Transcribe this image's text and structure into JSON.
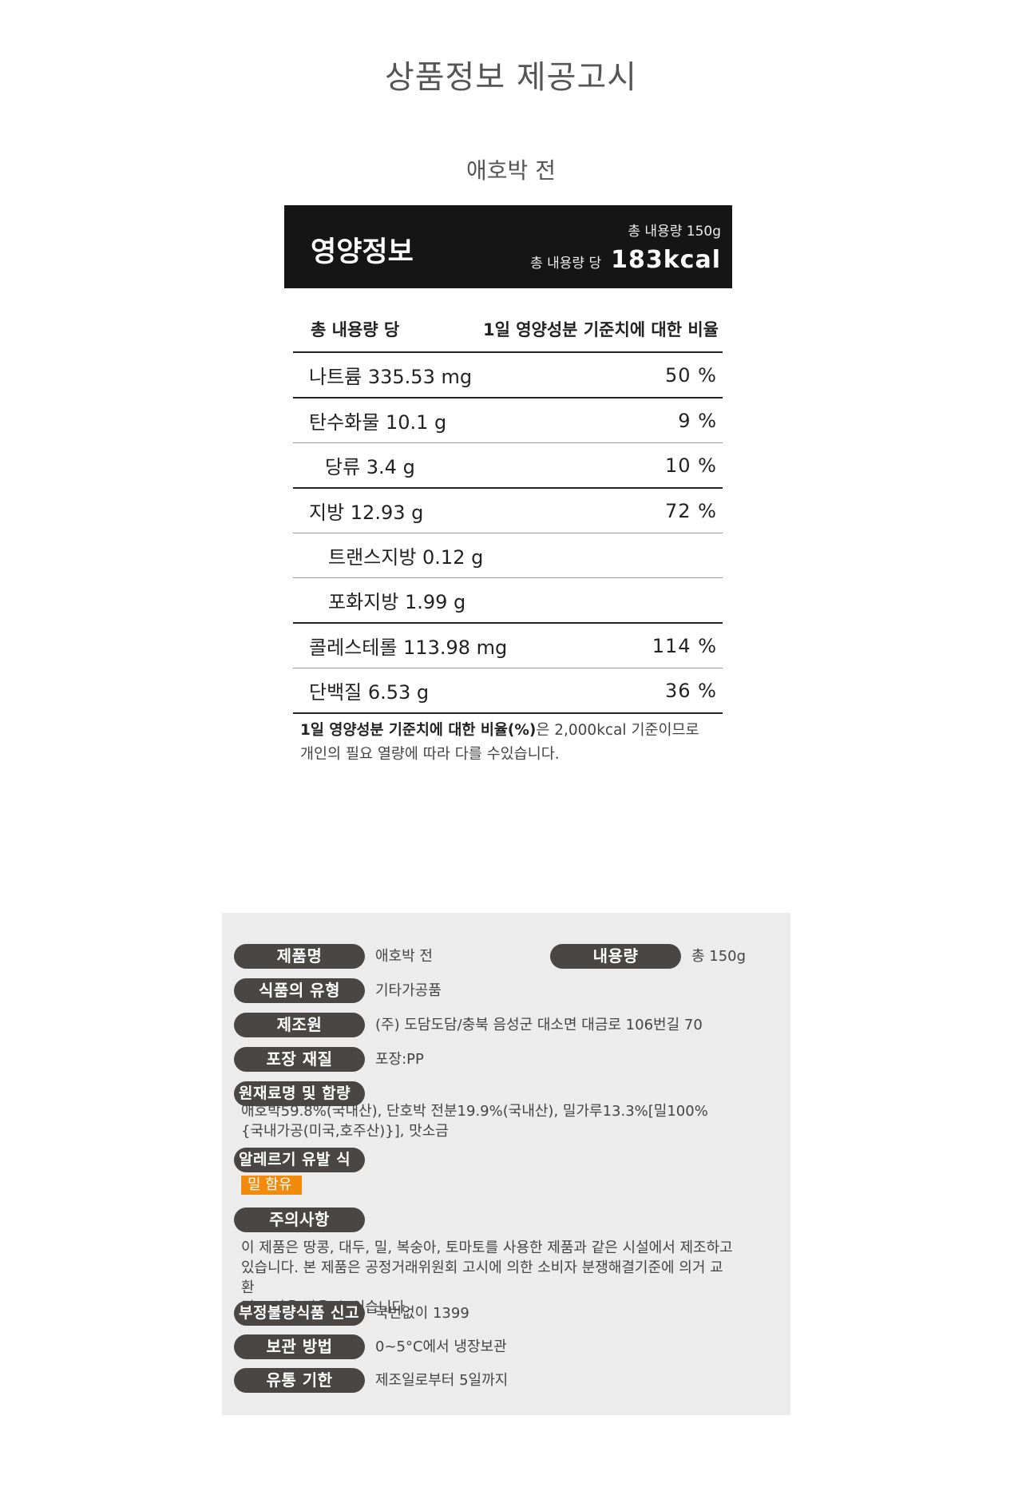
{
  "page": {
    "title": "상품정보 제공고시",
    "product_name": "애호박 전"
  },
  "nutrition": {
    "label": "영양정보",
    "total_amount": "총 내용량 150g",
    "per_label": "총 내용량 당",
    "kcal": "183kcal",
    "table_header_left": "총 내용량 당",
    "table_header_right": "1일 영양성분 기준치에 대한 비율",
    "rows": [
      {
        "name": "나트륨 335.53 mg",
        "pct": "50 %"
      },
      {
        "name": "탄수화물 10.1 g",
        "pct": "9 %"
      },
      {
        "name": "당류 3.4 g",
        "pct": "10 %"
      },
      {
        "name": "지방 12.93 g",
        "pct": "72 %"
      },
      {
        "name": "트랜스지방 0.12 g",
        "pct": ""
      },
      {
        "name": "포화지방 1.99 g",
        "pct": ""
      },
      {
        "name": "콜레스테롤 113.98 mg",
        "pct": "114 %"
      },
      {
        "name": "단백질 6.53 g",
        "pct": "36 %"
      }
    ],
    "note_bold": "1일 영양성분 기준치에 대한 비율(%)",
    "note_rest": "은 2,000kcal 기준이므로",
    "note_line2": "개인의 필요 열량에 따라 다를 수있습니다."
  },
  "info": {
    "product_label": "제품명",
    "product_value": "애호박 전",
    "amount_label": "내용량",
    "amount_value": "총 150g",
    "type_label": "식품의 유형",
    "type_value": "기타가공품",
    "maker_label": "제조원",
    "maker_value": "(주) 도담도담/충북 음성군 대소면 대금로 106번길 70",
    "package_label": "포장 재질",
    "package_value": "포장:PP",
    "ingredients_label": "원재료명 및 함량",
    "ingredients_line1": "애호박59.8%(국내산), 단호박 전분19.9%(국내산), 밀가루13.3%[밀100%",
    "ingredients_line2": "{국내가공(미국,호주산)}], 맛소금",
    "allergy_label": "알레르기 유발 식품",
    "allergy_value": "밀 함유",
    "caution_label": "주의사항",
    "caution_line1": "이 제품은 땅콩, 대두, 밀, 복숭아, 토마토를 사용한 제품과 같은 시설에서 제조하고",
    "caution_line2": "있습니다. 본 제품은 공정거래위원회 고시에 의한 소비자 분쟁해결기준에 의거 교환",
    "caution_line3": "및 보상을 받을 수 있습니다.",
    "report_label": "부정불량식품 신고",
    "report_value": "국번없이 1399",
    "storage_label": "보관 방법",
    "storage_value": "0~5°C에서 냉장보관",
    "expiry_label": "유통 기한",
    "expiry_value": "제조일로부터 5일까지"
  }
}
